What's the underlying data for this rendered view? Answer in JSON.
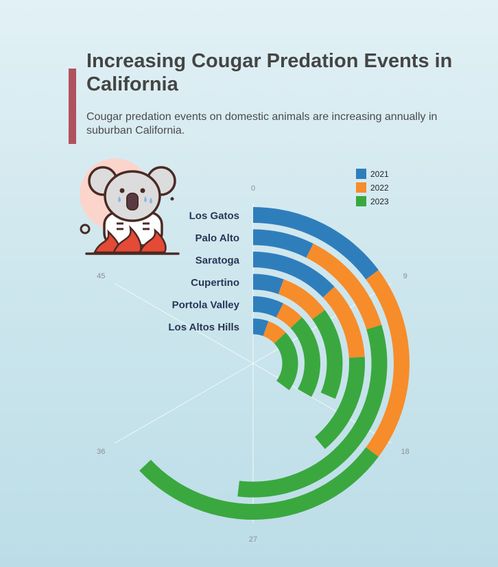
{
  "header": {
    "title": "Increasing Cougar Predation Events in California",
    "subtitle": "Cougar predation events on domestic animals are increasing annually in suburban California."
  },
  "colors": {
    "accent": "#b0525e",
    "series": [
      "#2f7ebc",
      "#f78c2a",
      "#3aa83f"
    ]
  },
  "icon": "crying-koala-on-fire-icon",
  "chart_data": {
    "type": "radial-stacked-bar",
    "categories": [
      "Los Gatos",
      "Palo Alto",
      "Saratoga",
      "Cupertino",
      "Portola Valley",
      "Los Altos Hills"
    ],
    "series": [
      {
        "name": "2021",
        "values": [
          8,
          4,
          7,
          3,
          4,
          3
        ]
      },
      {
        "name": "2022",
        "values": [
          11,
          7,
          6,
          5,
          3,
          4
        ]
      },
      {
        "name": "2023",
        "values": [
          15,
          17,
          8,
          9,
          11,
          12
        ]
      }
    ],
    "axis_ticks": [
      0,
      9,
      18,
      27,
      36,
      45
    ],
    "axis_max": 54,
    "legend_position": "top-right"
  }
}
